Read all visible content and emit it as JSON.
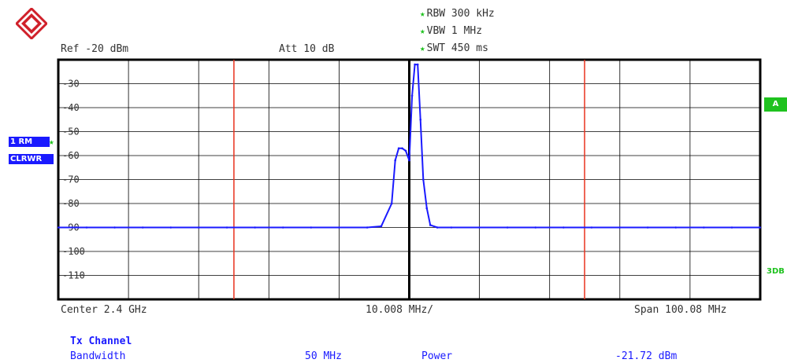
{
  "header": {
    "ref": "Ref -20 dBm",
    "att": "Att  10 dB",
    "rbw": "RBW 300 kHz",
    "vbw": "VBW 1 MHz",
    "swt": "SWT 450 ms"
  },
  "trace_badge": {
    "line1": "1 RM",
    "line2": "CLRWR"
  },
  "right_badges": {
    "a": "A",
    "threedb": "3DB"
  },
  "footer": {
    "center": "Center 2.4 GHz",
    "div": "10.008 MHz/",
    "span": "Span 100.08 MHz"
  },
  "measurement": {
    "heading": "Tx Channel",
    "bandwidth_label": "Bandwidth",
    "bandwidth_value": "50 MHz",
    "power_label": "Power",
    "power_value": "-21.72 dBm"
  },
  "colors": {
    "trace": "#1a1aff",
    "channel_line": "#e8321e",
    "grid": "#000000",
    "star": "#1fc21f"
  },
  "chart_data": {
    "type": "line",
    "xlabel": "",
    "ylabel": "",
    "xlim": [
      -50.04,
      50.04
    ],
    "ylim": [
      -120,
      -20
    ],
    "ytick_values": [
      -30,
      -40,
      -50,
      -60,
      -70,
      -80,
      -90,
      -100,
      -110
    ],
    "yticks": [
      "-30",
      "-40",
      "-50",
      "-60",
      "-70",
      "-80",
      "-90",
      "-100",
      "-110"
    ],
    "channel_lines_mhz": [
      -25,
      25
    ],
    "series": [
      {
        "x": [
          -50,
          -46,
          -42,
          -38,
          -34,
          -30,
          -26,
          -22,
          -18,
          -14,
          -10,
          -6,
          -4,
          -2.5,
          -2,
          -1.5,
          -1,
          -0.5,
          0,
          0.4,
          0.8,
          1.2,
          1.6,
          2,
          2.5,
          3,
          4,
          6,
          10,
          14,
          18,
          22,
          26,
          30,
          34,
          38,
          42,
          46,
          50
        ],
        "y": [
          -90,
          -90,
          -90,
          -90,
          -90,
          -90,
          -90,
          -90,
          -90,
          -90,
          -90,
          -90,
          -89.5,
          -80,
          -62,
          -57,
          -57,
          -58,
          -62,
          -35,
          -22,
          -22,
          -45,
          -70,
          -82,
          -89,
          -90,
          -90,
          -90,
          -90,
          -90,
          -90,
          -90,
          -90,
          -90,
          -90,
          -90,
          -90,
          -90
        ]
      }
    ]
  }
}
